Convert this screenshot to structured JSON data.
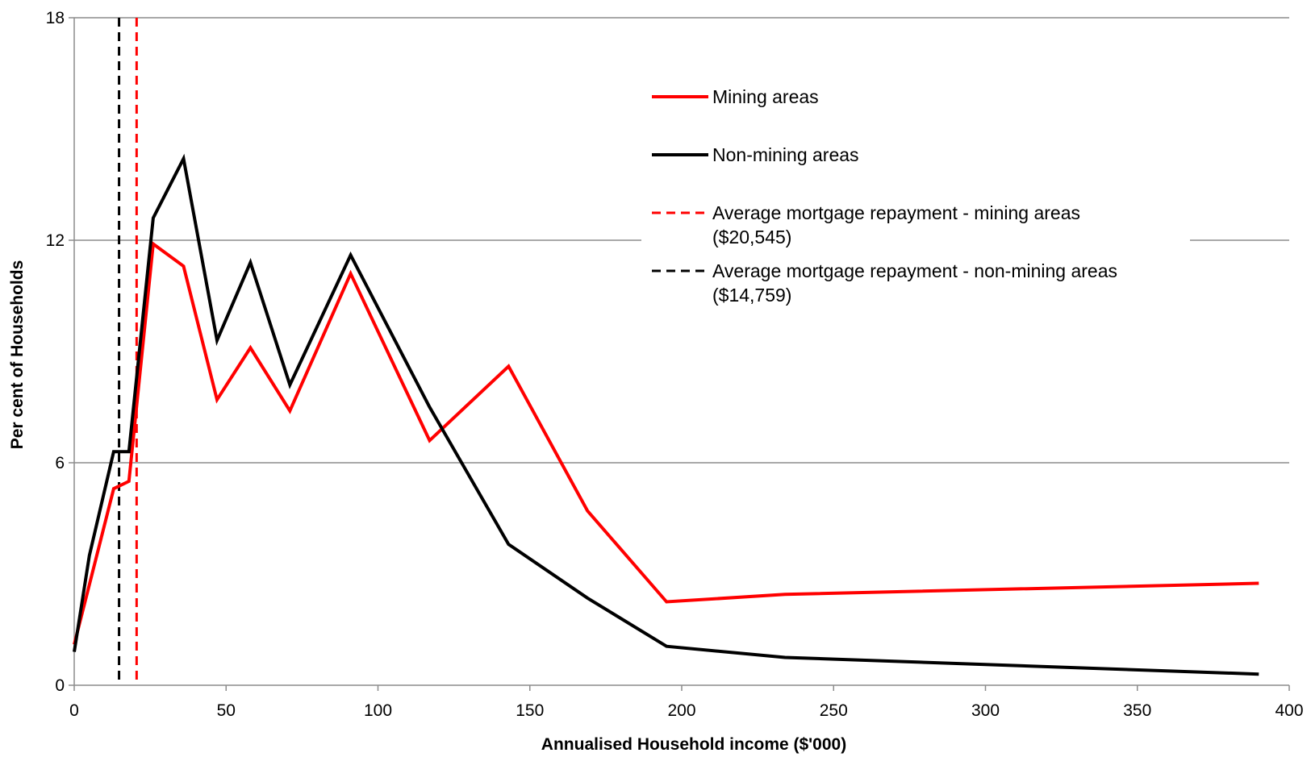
{
  "chart_data": {
    "type": "line",
    "title": "",
    "xlabel": "Annualised Household income ($'000)",
    "ylabel": "Per cent of Households",
    "xlim": [
      0,
      400
    ],
    "ylim": [
      0,
      18
    ],
    "xticks": [
      0,
      50,
      100,
      150,
      200,
      250,
      300,
      350,
      400
    ],
    "yticks": [
      0,
      6,
      12,
      18
    ],
    "grid": "horizontal",
    "legend_position": "top-right",
    "series": [
      {
        "name": "Mining areas",
        "color": "#ff0000",
        "style": "solid",
        "x": [
          0,
          13,
          18,
          26,
          36,
          47,
          58,
          71,
          91,
          117,
          143,
          169,
          195,
          234,
          390
        ],
        "y": [
          1.1,
          5.3,
          5.5,
          11.9,
          11.3,
          7.7,
          9.1,
          7.4,
          11.1,
          6.6,
          8.6,
          4.7,
          2.25,
          2.45,
          2.75
        ]
      },
      {
        "name": "Non-mining areas",
        "color": "#000000",
        "style": "solid",
        "x": [
          0,
          5,
          13,
          18,
          26,
          36,
          47,
          58,
          71,
          91,
          117,
          143,
          169,
          195,
          234,
          390
        ],
        "y": [
          0.9,
          3.5,
          6.3,
          6.3,
          12.6,
          14.2,
          9.3,
          11.4,
          8.1,
          11.6,
          7.5,
          3.8,
          2.35,
          1.05,
          0.75,
          0.3
        ]
      }
    ],
    "reference_lines": [
      {
        "name": "Average mortgage repayment - mining areas",
        "value_label": "($20,545)",
        "x": 20.545,
        "color": "#ff0000",
        "style": "dashed"
      },
      {
        "name": "Average mortgage repayment - non-mining areas",
        "value_label": "($14,759)",
        "x": 14.759,
        "color": "#000000",
        "style": "dashed"
      }
    ]
  }
}
